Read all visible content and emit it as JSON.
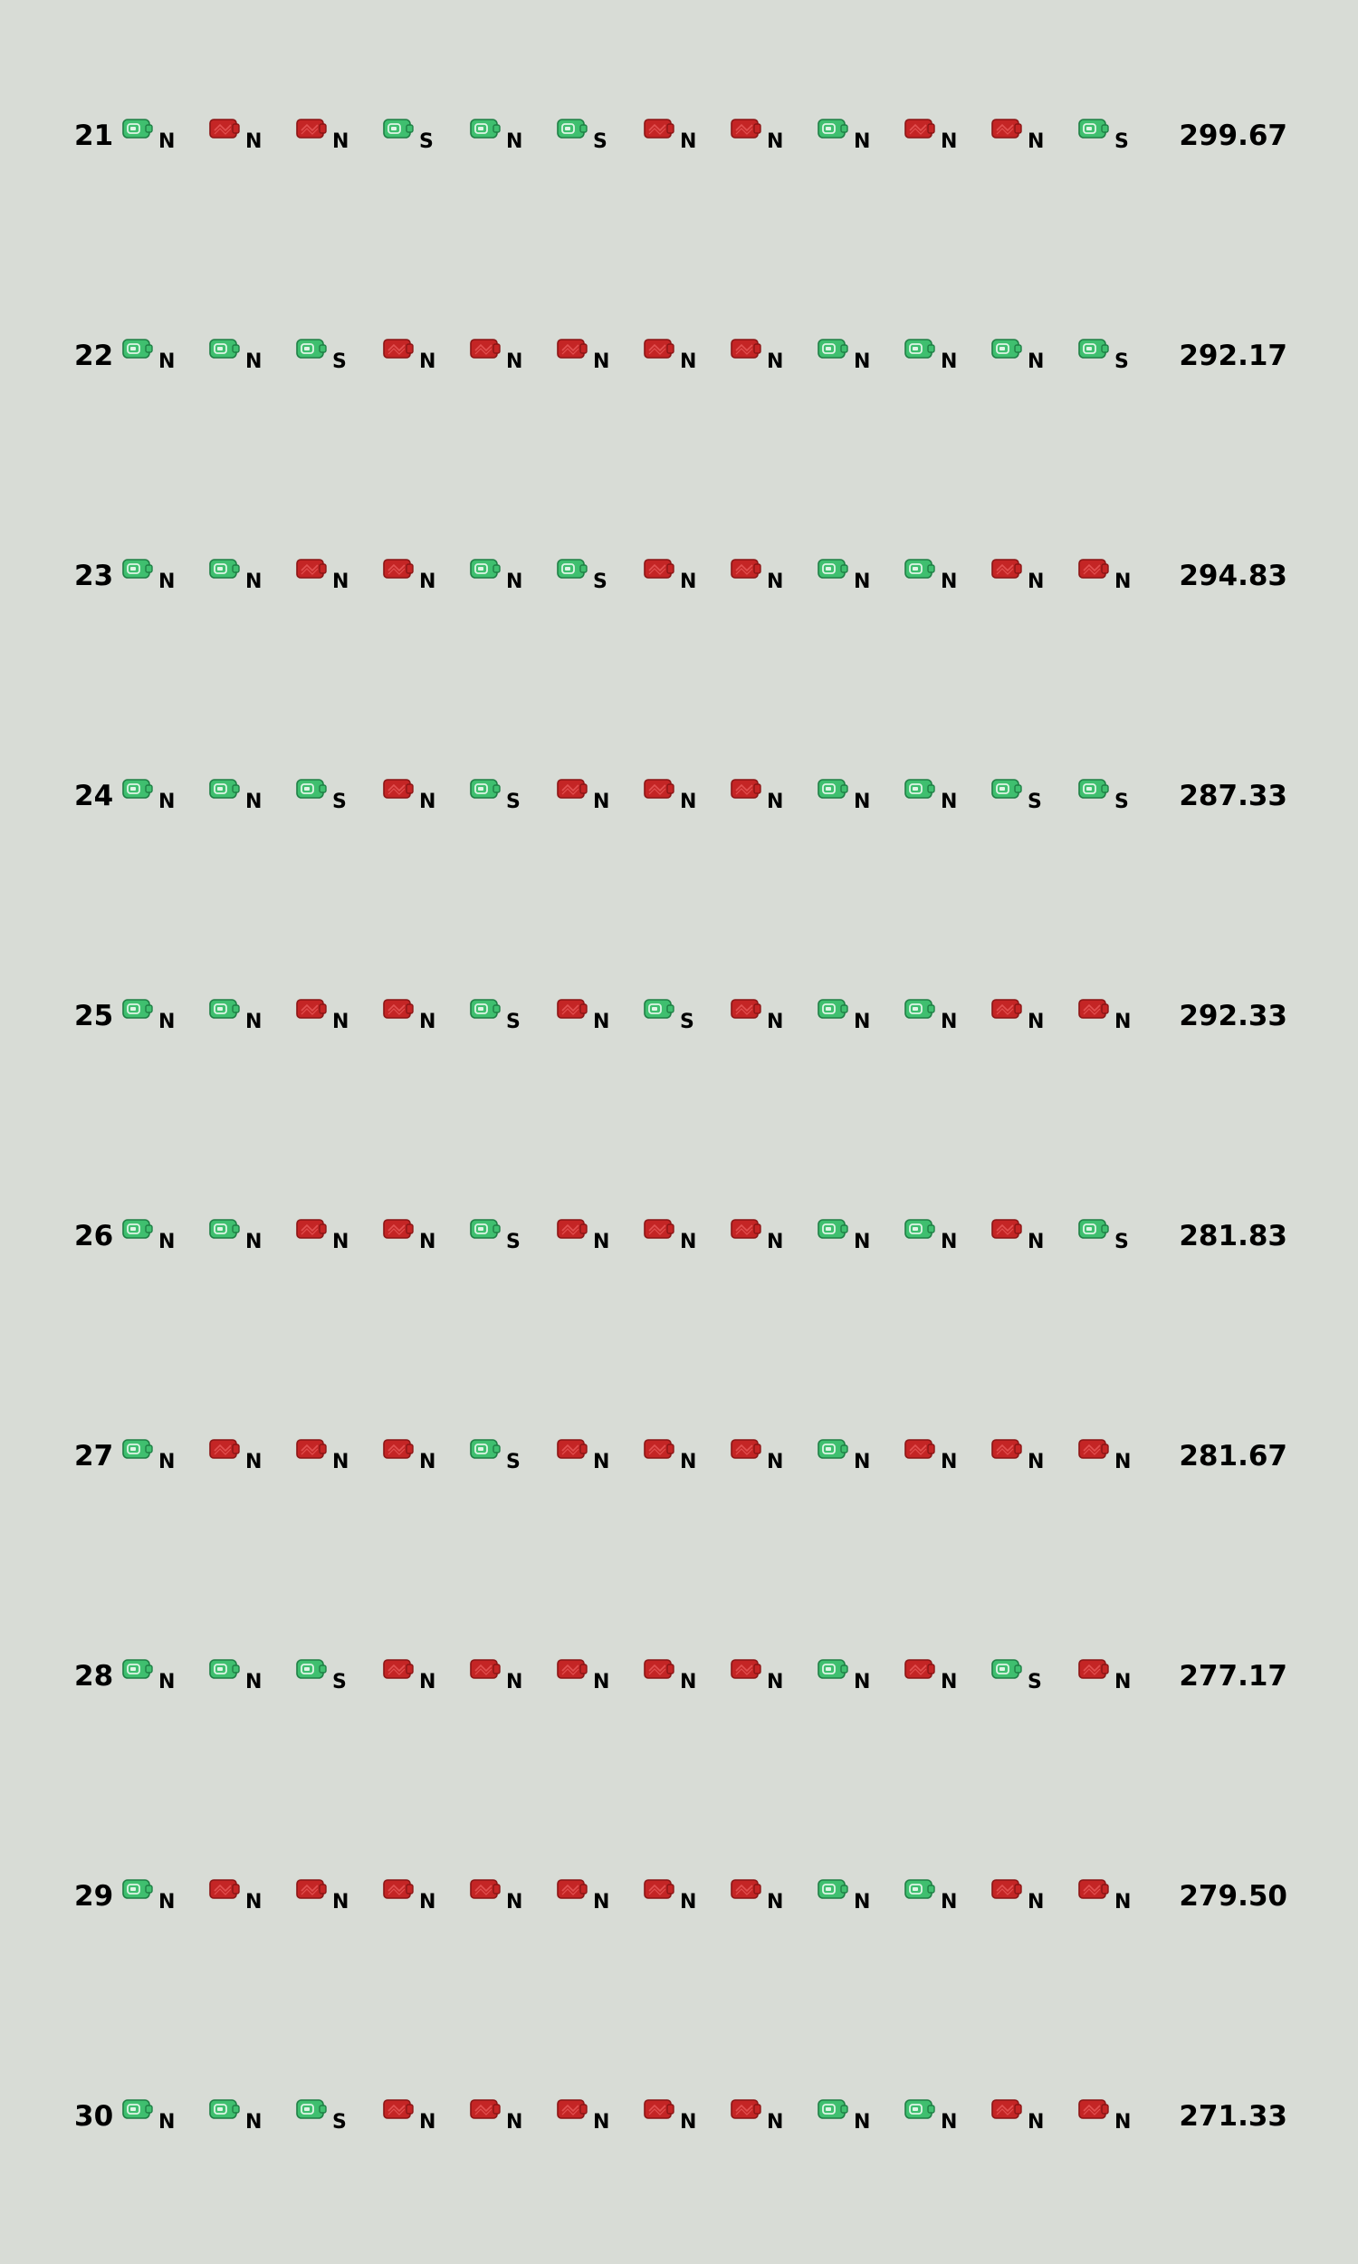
{
  "colors": {
    "background": "#d8dcd6",
    "ok": "#3fbf6f",
    "fail": "#c42525"
  },
  "icons": {
    "ok": "green-wallet-icon",
    "fail": "red-wallet-icon"
  },
  "rows": [
    {
      "num": "21",
      "score": "299.67",
      "cells": [
        {
          "state": "ok",
          "letter": "N"
        },
        {
          "state": "fail",
          "letter": "N"
        },
        {
          "state": "fail",
          "letter": "N"
        },
        {
          "state": "ok",
          "letter": "S"
        },
        {
          "state": "ok",
          "letter": "N"
        },
        {
          "state": "ok",
          "letter": "S"
        },
        {
          "state": "fail",
          "letter": "N"
        },
        {
          "state": "fail",
          "letter": "N"
        },
        {
          "state": "ok",
          "letter": "N"
        },
        {
          "state": "fail",
          "letter": "N"
        },
        {
          "state": "fail",
          "letter": "N"
        },
        {
          "state": "ok",
          "letter": "S"
        }
      ]
    },
    {
      "num": "22",
      "score": "292.17",
      "cells": [
        {
          "state": "ok",
          "letter": "N"
        },
        {
          "state": "ok",
          "letter": "N"
        },
        {
          "state": "ok",
          "letter": "S"
        },
        {
          "state": "fail",
          "letter": "N"
        },
        {
          "state": "fail",
          "letter": "N"
        },
        {
          "state": "fail",
          "letter": "N"
        },
        {
          "state": "fail",
          "letter": "N"
        },
        {
          "state": "fail",
          "letter": "N"
        },
        {
          "state": "ok",
          "letter": "N"
        },
        {
          "state": "ok",
          "letter": "N"
        },
        {
          "state": "ok",
          "letter": "N"
        },
        {
          "state": "ok",
          "letter": "S"
        }
      ]
    },
    {
      "num": "23",
      "score": "294.83",
      "cells": [
        {
          "state": "ok",
          "letter": "N"
        },
        {
          "state": "ok",
          "letter": "N"
        },
        {
          "state": "fail",
          "letter": "N"
        },
        {
          "state": "fail",
          "letter": "N"
        },
        {
          "state": "ok",
          "letter": "N"
        },
        {
          "state": "ok",
          "letter": "S"
        },
        {
          "state": "fail",
          "letter": "N"
        },
        {
          "state": "fail",
          "letter": "N"
        },
        {
          "state": "ok",
          "letter": "N"
        },
        {
          "state": "ok",
          "letter": "N"
        },
        {
          "state": "fail",
          "letter": "N"
        },
        {
          "state": "fail",
          "letter": "N"
        }
      ]
    },
    {
      "num": "24",
      "score": "287.33",
      "cells": [
        {
          "state": "ok",
          "letter": "N"
        },
        {
          "state": "ok",
          "letter": "N"
        },
        {
          "state": "ok",
          "letter": "S"
        },
        {
          "state": "fail",
          "letter": "N"
        },
        {
          "state": "ok",
          "letter": "S"
        },
        {
          "state": "fail",
          "letter": "N"
        },
        {
          "state": "fail",
          "letter": "N"
        },
        {
          "state": "fail",
          "letter": "N"
        },
        {
          "state": "ok",
          "letter": "N"
        },
        {
          "state": "ok",
          "letter": "N"
        },
        {
          "state": "ok",
          "letter": "S"
        },
        {
          "state": "ok",
          "letter": "S"
        }
      ]
    },
    {
      "num": "25",
      "score": "292.33",
      "cells": [
        {
          "state": "ok",
          "letter": "N"
        },
        {
          "state": "ok",
          "letter": "N"
        },
        {
          "state": "fail",
          "letter": "N"
        },
        {
          "state": "fail",
          "letter": "N"
        },
        {
          "state": "ok",
          "letter": "S"
        },
        {
          "state": "fail",
          "letter": "N"
        },
        {
          "state": "ok",
          "letter": "S"
        },
        {
          "state": "fail",
          "letter": "N"
        },
        {
          "state": "ok",
          "letter": "N"
        },
        {
          "state": "ok",
          "letter": "N"
        },
        {
          "state": "fail",
          "letter": "N"
        },
        {
          "state": "fail",
          "letter": "N"
        }
      ]
    },
    {
      "num": "26",
      "score": "281.83",
      "cells": [
        {
          "state": "ok",
          "letter": "N"
        },
        {
          "state": "ok",
          "letter": "N"
        },
        {
          "state": "fail",
          "letter": "N"
        },
        {
          "state": "fail",
          "letter": "N"
        },
        {
          "state": "ok",
          "letter": "S"
        },
        {
          "state": "fail",
          "letter": "N"
        },
        {
          "state": "fail",
          "letter": "N"
        },
        {
          "state": "fail",
          "letter": "N"
        },
        {
          "state": "ok",
          "letter": "N"
        },
        {
          "state": "ok",
          "letter": "N"
        },
        {
          "state": "fail",
          "letter": "N"
        },
        {
          "state": "ok",
          "letter": "S"
        }
      ]
    },
    {
      "num": "27",
      "score": "281.67",
      "cells": [
        {
          "state": "ok",
          "letter": "N"
        },
        {
          "state": "fail",
          "letter": "N"
        },
        {
          "state": "fail",
          "letter": "N"
        },
        {
          "state": "fail",
          "letter": "N"
        },
        {
          "state": "ok",
          "letter": "S"
        },
        {
          "state": "fail",
          "letter": "N"
        },
        {
          "state": "fail",
          "letter": "N"
        },
        {
          "state": "fail",
          "letter": "N"
        },
        {
          "state": "ok",
          "letter": "N"
        },
        {
          "state": "fail",
          "letter": "N"
        },
        {
          "state": "fail",
          "letter": "N"
        },
        {
          "state": "fail",
          "letter": "N"
        }
      ]
    },
    {
      "num": "28",
      "score": "277.17",
      "cells": [
        {
          "state": "ok",
          "letter": "N"
        },
        {
          "state": "ok",
          "letter": "N"
        },
        {
          "state": "ok",
          "letter": "S"
        },
        {
          "state": "fail",
          "letter": "N"
        },
        {
          "state": "fail",
          "letter": "N"
        },
        {
          "state": "fail",
          "letter": "N"
        },
        {
          "state": "fail",
          "letter": "N"
        },
        {
          "state": "fail",
          "letter": "N"
        },
        {
          "state": "ok",
          "letter": "N"
        },
        {
          "state": "fail",
          "letter": "N"
        },
        {
          "state": "ok",
          "letter": "S"
        },
        {
          "state": "fail",
          "letter": "N"
        }
      ]
    },
    {
      "num": "29",
      "score": "279.50",
      "cells": [
        {
          "state": "ok",
          "letter": "N"
        },
        {
          "state": "fail",
          "letter": "N"
        },
        {
          "state": "fail",
          "letter": "N"
        },
        {
          "state": "fail",
          "letter": "N"
        },
        {
          "state": "fail",
          "letter": "N"
        },
        {
          "state": "fail",
          "letter": "N"
        },
        {
          "state": "fail",
          "letter": "N"
        },
        {
          "state": "fail",
          "letter": "N"
        },
        {
          "state": "ok",
          "letter": "N"
        },
        {
          "state": "ok",
          "letter": "N"
        },
        {
          "state": "fail",
          "letter": "N"
        },
        {
          "state": "fail",
          "letter": "N"
        }
      ]
    },
    {
      "num": "30",
      "score": "271.33",
      "cells": [
        {
          "state": "ok",
          "letter": "N"
        },
        {
          "state": "ok",
          "letter": "N"
        },
        {
          "state": "ok",
          "letter": "S"
        },
        {
          "state": "fail",
          "letter": "N"
        },
        {
          "state": "fail",
          "letter": "N"
        },
        {
          "state": "fail",
          "letter": "N"
        },
        {
          "state": "fail",
          "letter": "N"
        },
        {
          "state": "fail",
          "letter": "N"
        },
        {
          "state": "ok",
          "letter": "N"
        },
        {
          "state": "ok",
          "letter": "N"
        },
        {
          "state": "fail",
          "letter": "N"
        },
        {
          "state": "fail",
          "letter": "N"
        }
      ]
    }
  ]
}
